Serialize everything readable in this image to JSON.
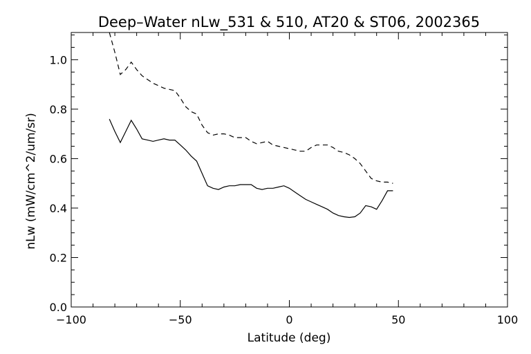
{
  "chart_data": {
    "type": "line",
    "title": "Deep–Water nLw_531 & 510, AT20 & ST06, 2002365",
    "xlabel": "Latitude (deg)",
    "ylabel": "nLw (mW/cm^2/um/sr)",
    "xlim": [
      -100,
      100
    ],
    "ylim": [
      0.0,
      1.11
    ],
    "x_ticks": [
      -100,
      -50,
      0,
      50,
      100
    ],
    "x_tick_labels": [
      "−100",
      "−50",
      "0",
      "50",
      "100"
    ],
    "y_ticks": [
      0.0,
      0.2,
      0.4,
      0.6,
      0.8,
      1.0
    ],
    "y_tick_labels": [
      "0.0",
      "0.2",
      "0.4",
      "0.6",
      "0.8",
      "1.0"
    ],
    "grid": false,
    "series": [
      {
        "style": "dashed",
        "x": [
          -82.5,
          -80,
          -77.5,
          -75,
          -72.5,
          -70,
          -67.5,
          -65,
          -62.5,
          -60,
          -57.5,
          -55,
          -52.5,
          -50,
          -47.5,
          -45,
          -42.5,
          -40,
          -37.5,
          -35,
          -32.5,
          -30,
          -27.5,
          -25,
          -22.5,
          -20,
          -17.5,
          -15,
          -12.5,
          -10,
          -7.5,
          -5,
          -2.5,
          0,
          2.5,
          5,
          7.5,
          10,
          12.5,
          15,
          17.5,
          20,
          22.5,
          25,
          27.5,
          30,
          32.5,
          35,
          37.5,
          40,
          42.5,
          45,
          47.5
        ],
        "y": [
          1.11,
          1.03,
          0.94,
          0.96,
          0.99,
          0.96,
          0.935,
          0.92,
          0.905,
          0.895,
          0.885,
          0.88,
          0.875,
          0.845,
          0.81,
          0.79,
          0.78,
          0.735,
          0.705,
          0.695,
          0.7,
          0.7,
          0.695,
          0.685,
          0.685,
          0.685,
          0.67,
          0.66,
          0.665,
          0.67,
          0.655,
          0.65,
          0.645,
          0.64,
          0.635,
          0.63,
          0.63,
          0.645,
          0.655,
          0.655,
          0.655,
          0.645,
          0.63,
          0.625,
          0.615,
          0.6,
          0.58,
          0.55,
          0.52,
          0.51,
          0.505,
          0.505,
          0.5
        ]
      },
      {
        "style": "solid",
        "x": [
          -82.5,
          -80,
          -77.5,
          -75,
          -72.5,
          -70,
          -67.5,
          -65,
          -62.5,
          -60,
          -57.5,
          -55,
          -52.5,
          -50,
          -47.5,
          -45,
          -42.5,
          -40,
          -37.5,
          -35,
          -32.5,
          -30,
          -27.5,
          -25,
          -22.5,
          -20,
          -17.5,
          -15,
          -12.5,
          -10,
          -7.5,
          -5,
          -2.5,
          0,
          2.5,
          5,
          7.5,
          10,
          12.5,
          15,
          17.5,
          20,
          22.5,
          25,
          27.5,
          30,
          32.5,
          35,
          37.5,
          40,
          42.5,
          45,
          47.5
        ],
        "y": [
          0.76,
          0.71,
          0.665,
          0.71,
          0.755,
          0.72,
          0.68,
          0.675,
          0.67,
          0.675,
          0.68,
          0.675,
          0.675,
          0.655,
          0.635,
          0.61,
          0.59,
          0.54,
          0.49,
          0.48,
          0.475,
          0.485,
          0.49,
          0.49,
          0.495,
          0.495,
          0.495,
          0.48,
          0.475,
          0.48,
          0.48,
          0.485,
          0.49,
          0.48,
          0.465,
          0.45,
          0.435,
          0.425,
          0.415,
          0.405,
          0.395,
          0.38,
          0.37,
          0.365,
          0.362,
          0.365,
          0.38,
          0.41,
          0.405,
          0.395,
          0.43,
          0.47,
          0.47
        ]
      }
    ]
  }
}
